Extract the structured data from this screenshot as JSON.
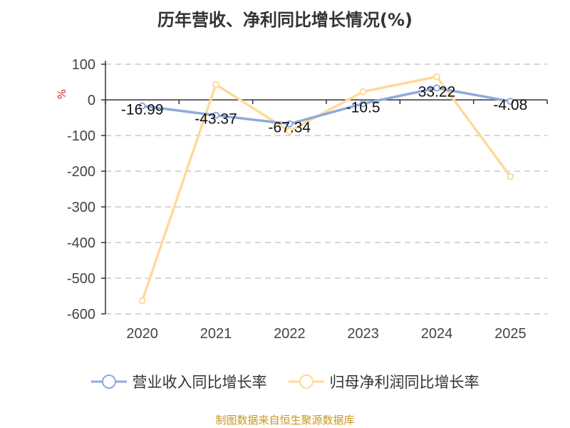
{
  "chart_data": {
    "type": "line",
    "title": "历年营收、净利同比增长情况(%)",
    "xlabel": "",
    "ylabel": "%",
    "categories": [
      "2020",
      "2021",
      "2022",
      "2023",
      "2024",
      "2025"
    ],
    "ylim": [
      -600,
      100
    ],
    "yticks": [
      100,
      0,
      -100,
      -200,
      -300,
      -400,
      -500,
      -600
    ],
    "grid": true,
    "legend_position": "bottom",
    "series": [
      {
        "name": "营业收入同比增长率",
        "color": "#8eaadb",
        "values": [
          -16.99,
          -43.37,
          -67.34,
          -10.5,
          33.22,
          -4.08
        ],
        "labels": [
          "-16.99",
          "-43.37",
          "-67.34",
          "-10.5",
          "33.22",
          "-4.08"
        ]
      },
      {
        "name": "归母净利润同比增长率",
        "color": "#ffd99a",
        "values": [
          -563,
          43,
          -88,
          23,
          65,
          -215
        ]
      }
    ]
  },
  "footer": "制图数据来自恒生聚源数据库"
}
